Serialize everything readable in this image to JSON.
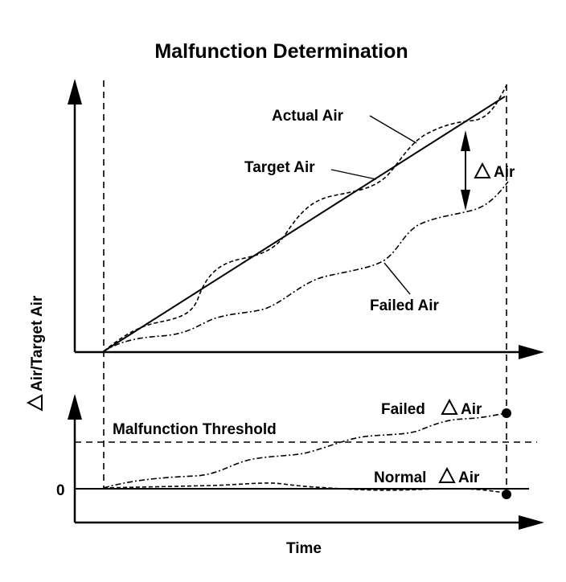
{
  "title": "Malfunction Determination",
  "labels": {
    "actual_air": "Actual Air",
    "target_air": "Target Air",
    "delta_air": "Air",
    "failed_air": "Failed Air",
    "y_axis": "Air/Target Air",
    "failed_delta_air": "Failed",
    "failed_delta_air_suffix": "Air",
    "malfunction_threshold": "Malfunction Threshold",
    "normal_delta_air": "Normal",
    "normal_delta_air_suffix": "Air",
    "zero": "0",
    "x_axis": "Time"
  },
  "colors": {
    "ink": "#000000",
    "background": "#ffffff"
  }
}
